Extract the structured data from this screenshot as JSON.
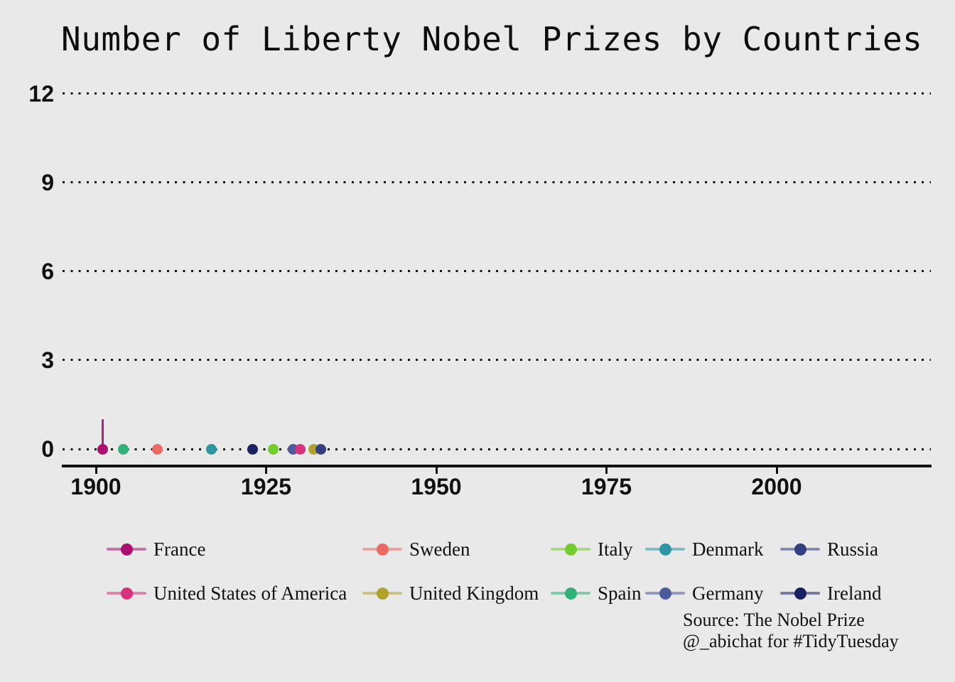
{
  "title": "Number of Liberty Nobel Prizes by Countries",
  "caption": {
    "line1": "Source: The Nobel Prize",
    "line2": "@_abichat for #TidyTuesday"
  },
  "colors": {
    "background": "#E9E9E9",
    "text": "#111111",
    "grid": "#141414",
    "axis": "#111111",
    "France": "#AC0F6F",
    "United States of America": "#D8317E",
    "Sweden": "#EB6A64",
    "United Kingdom": "#B1A12D",
    "Italy": "#72CC29",
    "Spain": "#2FB177",
    "Denmark": "#2E96A2",
    "Germany": "#4C5B9E",
    "Russia": "#343F81",
    "Ireland": "#1A2162"
  },
  "chart_data": {
    "type": "scatter",
    "subtype": "lollipop",
    "title": "Number of Liberty Nobel Prizes by Countries",
    "xlabel": "",
    "ylabel": "",
    "x_ticks": [
      1900,
      1925,
      1950,
      1975,
      2000
    ],
    "y_ticks": [
      0,
      3,
      6,
      9,
      12
    ],
    "xlim": [
      1895,
      2023
    ],
    "ylim": [
      0,
      12
    ],
    "grid": "horizontal dotted black",
    "legend_position": "bottom",
    "points": [
      {
        "country": "France",
        "year": 1901,
        "value": 0,
        "stem_to": 1,
        "color": "#AC0F6F"
      },
      {
        "country": "Spain",
        "year": 1904,
        "value": 0,
        "color": "#2FB177"
      },
      {
        "country": "Sweden",
        "year": 1909,
        "value": 0,
        "color": "#EB6A64"
      },
      {
        "country": "Denmark",
        "year": 1917,
        "value": 0,
        "color": "#2E96A2"
      },
      {
        "country": "Ireland",
        "year": 1923,
        "value": 0,
        "color": "#1A2162"
      },
      {
        "country": "Italy",
        "year": 1926,
        "value": 0,
        "color": "#72CC29"
      },
      {
        "country": "Germany",
        "year": 1929,
        "value": 0,
        "color": "#4C5B9E"
      },
      {
        "country": "United States of America",
        "year": 1930,
        "value": 0,
        "color": "#D8317E"
      },
      {
        "country": "United Kingdom",
        "year": 1932,
        "value": 0,
        "color": "#B1A12D"
      },
      {
        "country": "Russia",
        "year": 1933,
        "value": 0,
        "color": "#343F81"
      }
    ]
  },
  "legend": {
    "columns": [
      {
        "entries": [
          {
            "label": "France",
            "color": "#AC0F6F"
          },
          {
            "label": "United States of America",
            "color": "#D8317E"
          }
        ]
      },
      {
        "entries": [
          {
            "label": "Sweden",
            "color": "#EB6A64"
          },
          {
            "label": "United Kingdom",
            "color": "#B1A12D"
          }
        ]
      },
      {
        "entries": [
          {
            "label": "Italy",
            "color": "#72CC29"
          },
          {
            "label": "Spain",
            "color": "#2FB177"
          }
        ]
      },
      {
        "entries": [
          {
            "label": "Denmark",
            "color": "#2E96A2"
          },
          {
            "label": "Germany",
            "color": "#4C5B9E"
          }
        ]
      },
      {
        "entries": [
          {
            "label": "Russia",
            "color": "#343F81"
          },
          {
            "label": "Ireland",
            "color": "#1A2162"
          }
        ]
      }
    ]
  }
}
